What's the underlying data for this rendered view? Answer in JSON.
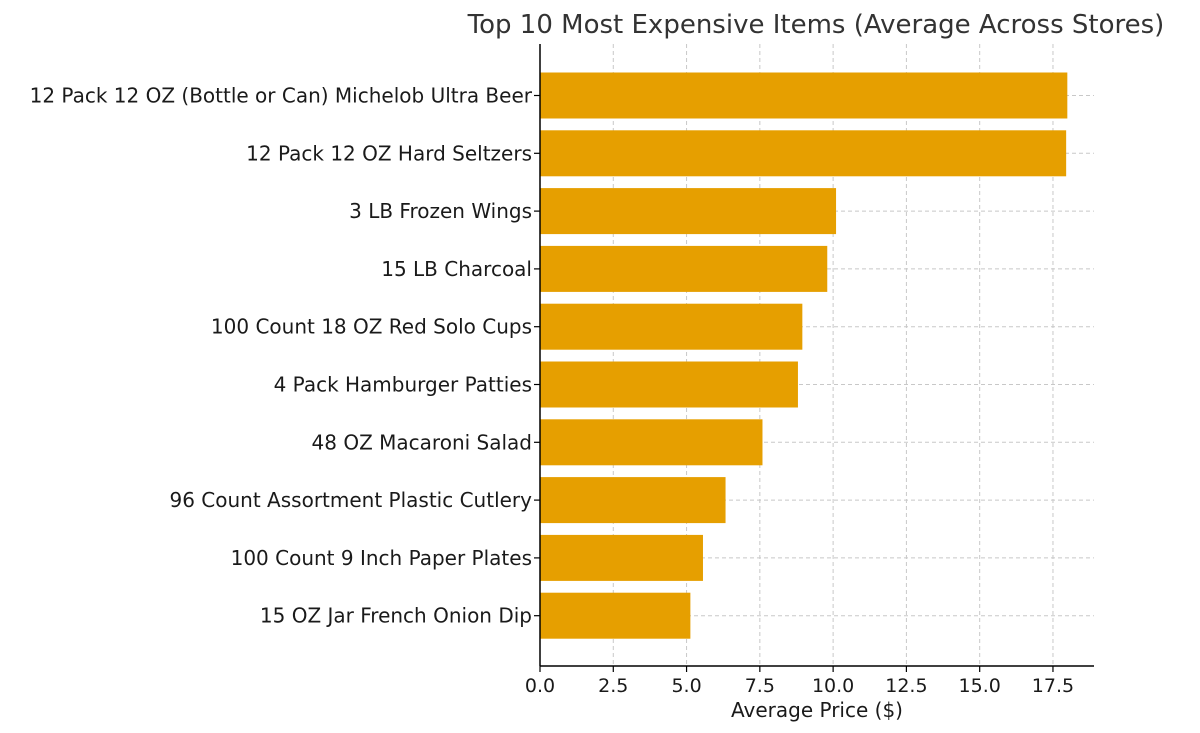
{
  "chart_data": {
    "type": "bar",
    "orientation": "horizontal",
    "title": "Top 10 Most Expensive Items (Average Across Stores)",
    "xlabel": "Average Price ($)",
    "ylabel": "",
    "xlim": [
      0,
      18.9
    ],
    "xticks": [
      0.0,
      2.5,
      5.0,
      7.5,
      10.0,
      12.5,
      15.0,
      17.5
    ],
    "xtick_labels": [
      "0.0",
      "2.5",
      "5.0",
      "7.5",
      "10.0",
      "12.5",
      "15.0",
      "17.5"
    ],
    "grid": true,
    "bar_color": "#E69F00",
    "categories": [
      "12 Pack 12 OZ (Bottle or Can) Michelob Ultra Beer",
      "12 Pack 12 OZ Hard Seltzers",
      "3 LB Frozen Wings",
      "15 LB Charcoal",
      "100 Count 18 OZ Red Solo Cups",
      "4 Pack Hamburger Patties",
      "48 OZ Macaroni Salad",
      "96 Count Assortment Plastic Cutlery",
      "100 Count 9 Inch Paper Plates",
      "15 OZ Jar French Onion Dip"
    ],
    "values": [
      17.99,
      17.95,
      10.1,
      9.8,
      8.95,
      8.8,
      7.59,
      6.33,
      5.56,
      5.13
    ]
  }
}
